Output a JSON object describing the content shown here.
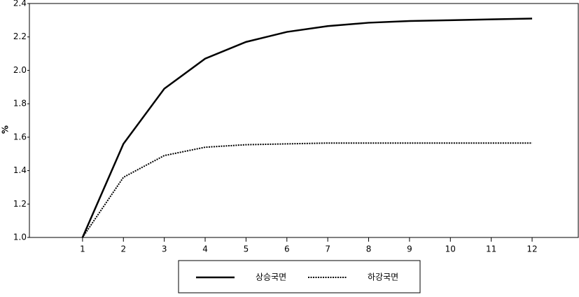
{
  "chart_data": {
    "type": "line",
    "ylabel": "%",
    "x": [
      1,
      2,
      3,
      4,
      5,
      6,
      7,
      8,
      9,
      10,
      11,
      12
    ],
    "xlim": [
      -0.3,
      13.13
    ],
    "xticks": [
      1,
      2,
      3,
      4,
      5,
      6,
      7,
      8,
      9,
      10,
      11,
      12
    ],
    "ylim": [
      1.0,
      2.4
    ],
    "yticks": [
      {
        "value": 1.0,
        "label": "1.0"
      },
      1.2,
      1.4,
      1.6,
      1.8,
      {
        "value": 2.0,
        "label": "2.0"
      },
      2.2,
      2.4
    ],
    "series": [
      {
        "name": "상승국면",
        "color": "#000000",
        "style": "solid",
        "values": [
          1.0,
          1.56,
          1.89,
          2.07,
          2.17,
          2.23,
          2.265,
          2.285,
          2.295,
          2.3,
          2.305,
          2.31
        ]
      },
      {
        "name": "하강국면",
        "color": "#000000",
        "style": "dotted",
        "values": [
          1.0,
          1.36,
          1.49,
          1.54,
          1.555,
          1.56,
          1.565,
          1.565,
          1.565,
          1.565,
          1.565,
          1.565
        ]
      }
    ]
  }
}
